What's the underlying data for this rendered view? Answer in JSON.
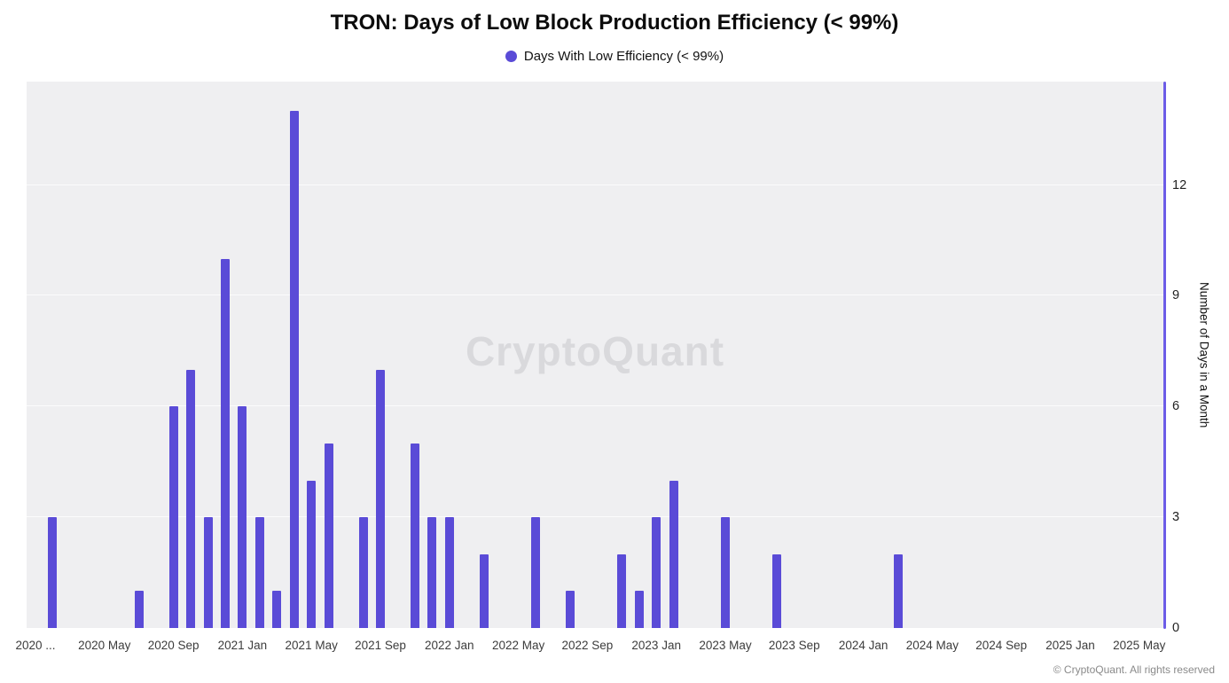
{
  "watermark": "CryptoQuant",
  "footer": "© CryptoQuant. All rights reserved",
  "chart_data": {
    "type": "bar",
    "title": "TRON: Days of Low Block Production Efficiency (< 99%)",
    "series_name": "Days With Low Efficiency (< 99%)",
    "ylabel": "Number of Days in a Month",
    "ylim": [
      0,
      14.8
    ],
    "yticks": [
      0,
      3,
      6,
      9,
      12
    ],
    "grid": "horizontal-faint",
    "legend_position": "top-center",
    "x_axis_start": "2020-01",
    "x_tick_step_months": 4,
    "x_tick_labels": [
      "2020 ...",
      "2020 May",
      "2020 Sep",
      "2021 Jan",
      "2021 May",
      "2021 Sep",
      "2022 Jan",
      "2022 May",
      "2022 Sep",
      "2023 Jan",
      "2023 May",
      "2023 Sep",
      "2024 Jan",
      "2024 May",
      "2024 Sep",
      "2025 Jan",
      "2025 May"
    ],
    "bar_color": "#5a4bd7",
    "axis_color": "#6c5ce7",
    "plot_background": "#efeff1",
    "points": [
      {
        "month": "2020-02",
        "value": 3
      },
      {
        "month": "2020-07",
        "value": 1
      },
      {
        "month": "2020-09",
        "value": 6
      },
      {
        "month": "2020-10",
        "value": 7
      },
      {
        "month": "2020-11",
        "value": 3
      },
      {
        "month": "2020-12",
        "value": 10
      },
      {
        "month": "2021-01",
        "value": 6
      },
      {
        "month": "2021-02",
        "value": 3
      },
      {
        "month": "2021-03",
        "value": 1
      },
      {
        "month": "2021-04",
        "value": 14
      },
      {
        "month": "2021-05",
        "value": 4
      },
      {
        "month": "2021-06",
        "value": 5
      },
      {
        "month": "2021-08",
        "value": 3
      },
      {
        "month": "2021-09",
        "value": 7
      },
      {
        "month": "2021-11",
        "value": 5
      },
      {
        "month": "2021-12",
        "value": 3
      },
      {
        "month": "2022-01",
        "value": 3
      },
      {
        "month": "2022-03",
        "value": 2
      },
      {
        "month": "2022-06",
        "value": 3
      },
      {
        "month": "2022-08",
        "value": 1
      },
      {
        "month": "2022-11",
        "value": 2
      },
      {
        "month": "2022-12",
        "value": 1
      },
      {
        "month": "2023-01",
        "value": 3
      },
      {
        "month": "2023-02",
        "value": 4
      },
      {
        "month": "2023-05",
        "value": 3
      },
      {
        "month": "2023-08",
        "value": 2
      },
      {
        "month": "2024-03",
        "value": 2
      }
    ]
  }
}
